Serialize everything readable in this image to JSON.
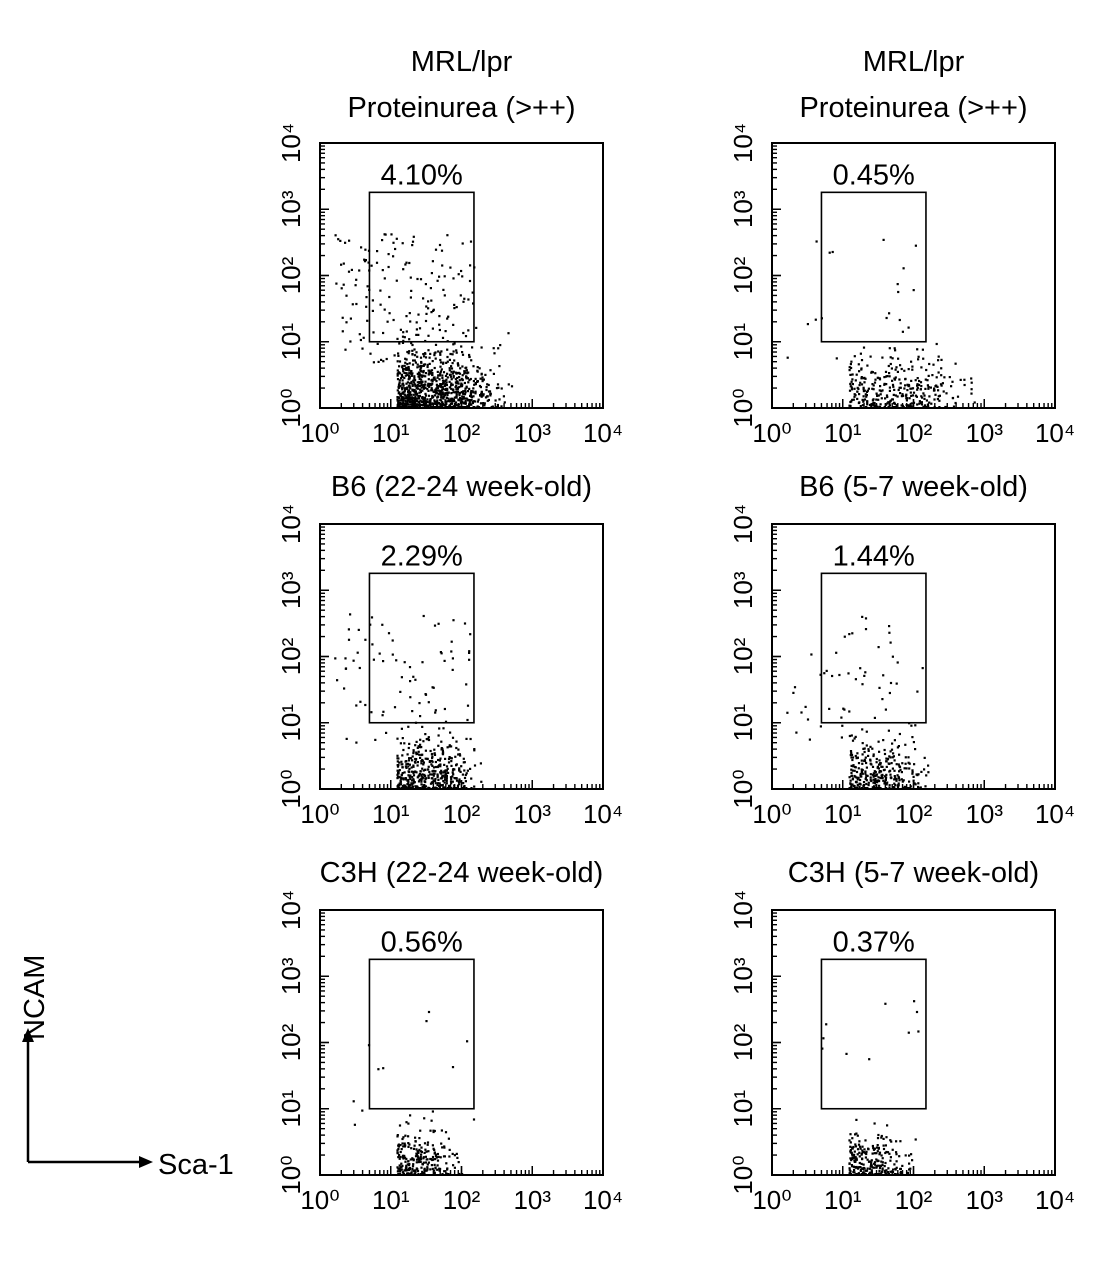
{
  "chart_data": [
    {
      "type": "scatter",
      "title_lines": [
        "MRL/lpr",
        "Proteinurea (>++)"
      ],
      "gate_percent": "4.10%",
      "xscale": "log",
      "yscale": "log",
      "xlim": [
        1,
        10000
      ],
      "ylim": [
        1,
        10000
      ],
      "xtick_labels": [
        "10⁰",
        "10¹",
        "10²",
        "10³",
        "10⁴"
      ],
      "ytick_labels": [
        "10⁰",
        "10¹",
        "10²",
        "10³",
        "10⁴"
      ],
      "gate": {
        "x": [
          5,
          150
        ],
        "y": [
          10,
          1800
        ]
      },
      "population": {
        "core_x": [
          12,
          500
        ],
        "core_y": [
          1,
          9
        ],
        "core_count": 900,
        "upper_count": 170
      },
      "grid": false
    },
    {
      "type": "scatter",
      "title_lines": [
        "MRL/lpr",
        "Proteinurea (>++)"
      ],
      "gate_percent": "0.45%",
      "xscale": "log",
      "yscale": "log",
      "xlim": [
        1,
        10000
      ],
      "ylim": [
        1,
        10000
      ],
      "xtick_labels": [
        "10⁰",
        "10¹",
        "10²",
        "10³",
        "10⁴"
      ],
      "ytick_labels": [
        "10⁰",
        "10¹",
        "10²",
        "10³",
        "10⁴"
      ],
      "gate": {
        "x": [
          5,
          150
        ],
        "y": [
          10,
          1800
        ]
      },
      "population": {
        "core_x": [
          12,
          800
        ],
        "core_y": [
          1,
          8
        ],
        "core_count": 330,
        "upper_count": 22
      },
      "grid": false
    },
    {
      "type": "scatter",
      "title_lines": [
        "B6 (22-24 week-old)"
      ],
      "gate_percent": "2.29%",
      "xscale": "log",
      "yscale": "log",
      "xlim": [
        1,
        10000
      ],
      "ylim": [
        1,
        10000
      ],
      "xtick_labels": [
        "10⁰",
        "10¹",
        "10²",
        "10³",
        "10⁴"
      ],
      "ytick_labels": [
        "10⁰",
        "10¹",
        "10²",
        "10³",
        "10⁴"
      ],
      "gate": {
        "x": [
          5,
          150
        ],
        "y": [
          10,
          1800
        ]
      },
      "population": {
        "core_x": [
          12,
          200
        ],
        "core_y": [
          1,
          8
        ],
        "core_count": 430,
        "upper_count": 75
      },
      "grid": false
    },
    {
      "type": "scatter",
      "title_lines": [
        "B6 (5-7 week-old)"
      ],
      "gate_percent": "1.44%",
      "xscale": "log",
      "yscale": "log",
      "xlim": [
        1,
        10000
      ],
      "ylim": [
        1,
        10000
      ],
      "xtick_labels": [
        "10⁰",
        "10¹",
        "10²",
        "10³",
        "10⁴"
      ],
      "ytick_labels": [
        "10⁰",
        "10¹",
        "10²",
        "10³",
        "10⁴"
      ],
      "gate": {
        "x": [
          5,
          150
        ],
        "y": [
          10,
          1800
        ]
      },
      "population": {
        "core_x": [
          12,
          180
        ],
        "core_y": [
          1,
          8
        ],
        "core_count": 300,
        "upper_count": 55
      },
      "grid": false
    },
    {
      "type": "scatter",
      "title_lines": [
        "C3H (22-24 week-old)"
      ],
      "gate_percent": "0.56%",
      "xscale": "log",
      "yscale": "log",
      "xlim": [
        1,
        10000
      ],
      "ylim": [
        1,
        10000
      ],
      "xtick_labels": [
        "10⁰",
        "10¹",
        "10²",
        "10³",
        "10⁴"
      ],
      "ytick_labels": [
        "10⁰",
        "10¹",
        "10²",
        "10³",
        "10⁴"
      ],
      "gate": {
        "x": [
          5,
          150
        ],
        "y": [
          10,
          1800
        ]
      },
      "population": {
        "core_x": [
          12,
          110
        ],
        "core_y": [
          1,
          6
        ],
        "core_count": 240,
        "upper_count": 12
      },
      "grid": false
    },
    {
      "type": "scatter",
      "title_lines": [
        "C3H (5-7 week-old)"
      ],
      "gate_percent": "0.37%",
      "xscale": "log",
      "yscale": "log",
      "xlim": [
        1,
        10000
      ],
      "ylim": [
        1,
        10000
      ],
      "xtick_labels": [
        "10⁰",
        "10¹",
        "10²",
        "10³",
        "10⁴"
      ],
      "ytick_labels": [
        "10⁰",
        "10¹",
        "10²",
        "10³",
        "10⁴"
      ],
      "gate": {
        "x": [
          5,
          150
        ],
        "y": [
          10,
          1800
        ]
      },
      "population": {
        "core_x": [
          12,
          110
        ],
        "core_y": [
          1,
          6
        ],
        "core_count": 230,
        "upper_count": 12
      },
      "grid": false
    }
  ],
  "axis_key": {
    "y_label": "NCAM",
    "x_label": "Sca-1"
  }
}
